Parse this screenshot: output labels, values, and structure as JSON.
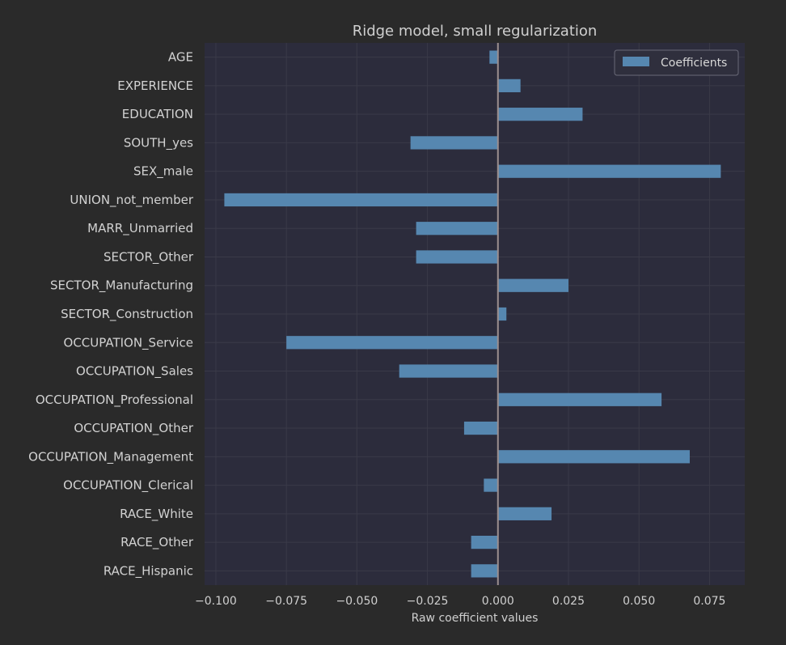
{
  "chart_data": {
    "type": "bar",
    "orientation": "horizontal",
    "title": "Ridge model, small regularization",
    "xlabel": "Raw coefficient values",
    "ylabel": "",
    "xlim": [
      -0.104,
      0.0875
    ],
    "xticks": [
      -0.1,
      -0.075,
      -0.05,
      -0.025,
      0.0,
      0.025,
      0.05,
      0.075
    ],
    "xtick_labels": [
      "−0.100",
      "−0.075",
      "−0.050",
      "−0.025",
      "0.000",
      "0.025",
      "0.050",
      "0.075"
    ],
    "grid": true,
    "legend": "top-right",
    "zero_line": true,
    "categories": [
      "AGE",
      "EXPERIENCE",
      "EDUCATION",
      "SOUTH_yes",
      "SEX_male",
      "UNION_not_member",
      "MARR_Unmarried",
      "SECTOR_Other",
      "SECTOR_Manufacturing",
      "SECTOR_Construction",
      "OCCUPATION_Service",
      "OCCUPATION_Sales",
      "OCCUPATION_Professional",
      "OCCUPATION_Other",
      "OCCUPATION_Management",
      "OCCUPATION_Clerical",
      "RACE_White",
      "RACE_Other",
      "RACE_Hispanic"
    ],
    "series": [
      {
        "name": "Coefficients",
        "color": "#5687b0",
        "values": [
          -0.003,
          0.008,
          0.03,
          -0.031,
          0.079,
          -0.097,
          -0.029,
          -0.029,
          0.025,
          0.003,
          -0.075,
          -0.035,
          0.058,
          -0.012,
          0.068,
          -0.005,
          0.019,
          -0.0095,
          -0.0095
        ]
      }
    ],
    "colors": {
      "figure_bg": "#2a2a2a",
      "axes_bg": "#2c2c3c",
      "grid": "#3a3a48",
      "zero_line": "#9c8f8f",
      "bar": "#5687b0"
    }
  }
}
